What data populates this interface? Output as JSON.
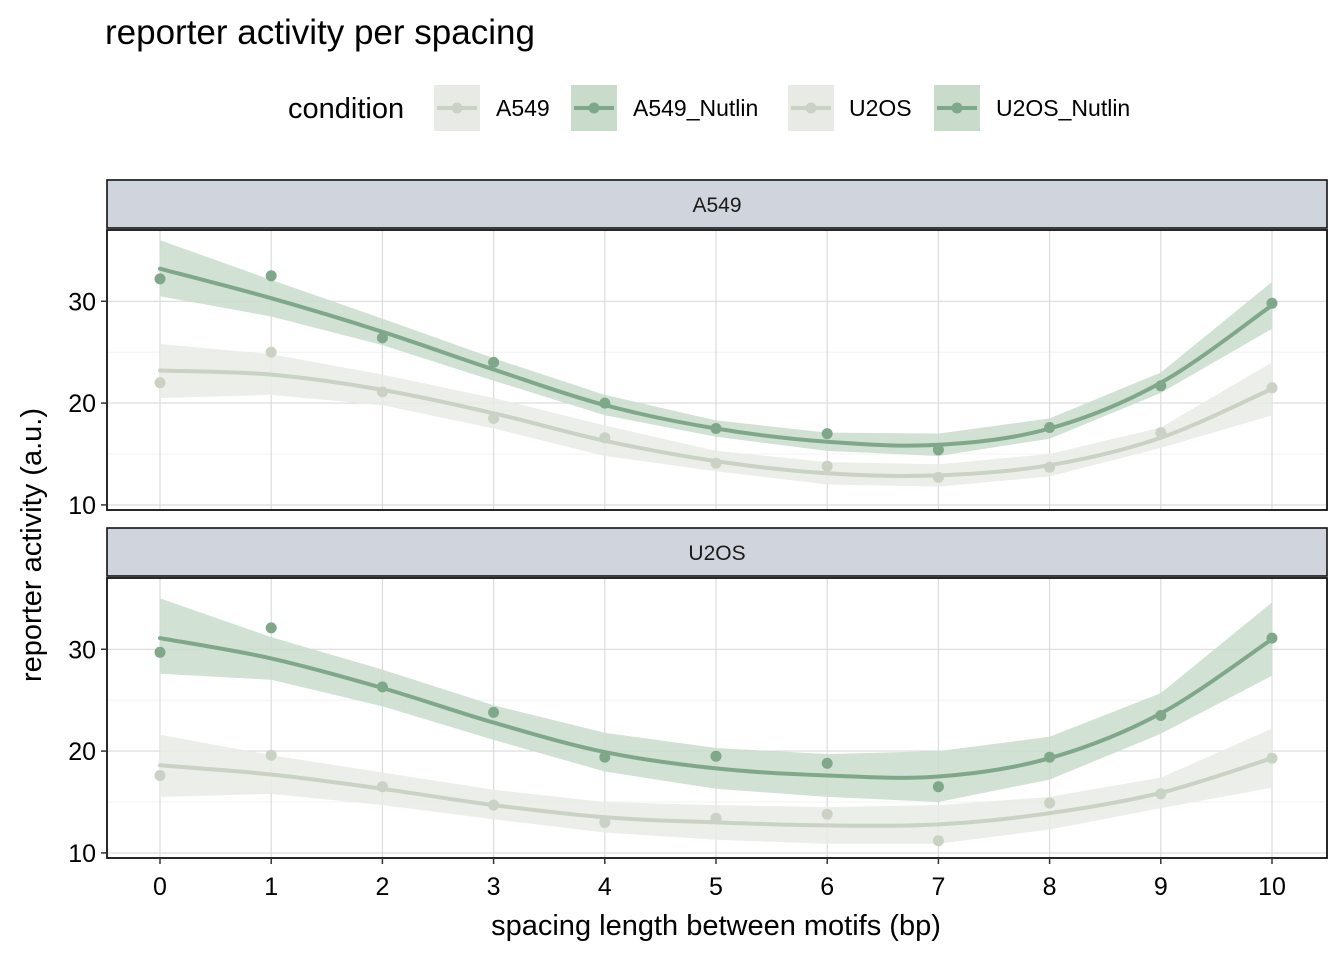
{
  "chart_data": {
    "type": "scatter",
    "title": "reporter activity per spacing",
    "xlabel": "spacing length between motifs (bp)",
    "ylabel": "reporter activity (a.u.)",
    "x_ticks": [
      0,
      1,
      2,
      3,
      4,
      5,
      6,
      7,
      8,
      9,
      10
    ],
    "xlim": [
      -0.5,
      10.5
    ],
    "y_ticks": [
      10,
      20,
      30
    ],
    "ylim": [
      9.5,
      37
    ],
    "legend": {
      "title": "condition",
      "position": "top",
      "entries": [
        "A549",
        "A549_Nutlin",
        "U2OS",
        "U2OS_Nutlin"
      ]
    },
    "colors": {
      "light": "#c9d2c5",
      "dark": "#7fa88a",
      "light_band": "#e8ebe5",
      "dark_band": "#c9dccc",
      "strip_bg": "#d0d5dd"
    },
    "panels": [
      {
        "label": "A549",
        "series": [
          {
            "name": "A549",
            "tone": "light",
            "points": [
              22.0,
              25.0,
              21.1,
              18.5,
              16.6,
              14.1,
              13.8,
              12.7,
              13.7,
              17.1,
              21.5
            ],
            "smooth": [
              23.2,
              22.8,
              21.3,
              19.0,
              16.3,
              14.3,
              13.1,
              12.9,
              13.9,
              16.6,
              21.4
            ],
            "ci_low": [
              20.5,
              20.8,
              19.8,
              17.5,
              14.8,
              13.3,
              12.0,
              11.8,
              12.8,
              15.6,
              18.8
            ],
            "ci_high": [
              25.8,
              24.8,
              22.8,
              20.5,
              17.8,
              15.3,
              14.2,
              14.0,
              15.0,
              17.6,
              24.0
            ]
          },
          {
            "name": "A549_Nutlin",
            "tone": "dark",
            "points": [
              32.2,
              32.5,
              26.4,
              24.0,
              20.0,
              17.5,
              17.0,
              15.4,
              17.6,
              21.7,
              29.8
            ],
            "smooth": [
              33.2,
              30.3,
              27.0,
              23.3,
              19.8,
              17.5,
              16.2,
              15.9,
              17.5,
              22.0,
              29.6
            ],
            "ci_low": [
              30.5,
              28.5,
              25.7,
              22.2,
              18.8,
              16.7,
              15.3,
              14.8,
              16.5,
              21.0,
              27.3
            ],
            "ci_high": [
              36.0,
              32.1,
              28.3,
              24.4,
              20.8,
              18.3,
              17.1,
              17.0,
              18.5,
              23.0,
              31.9
            ]
          }
        ]
      },
      {
        "label": "U2OS",
        "series": [
          {
            "name": "U2OS",
            "tone": "light",
            "points": [
              17.6,
              19.6,
              16.5,
              14.7,
              13.0,
              13.4,
              13.8,
              11.2,
              14.9,
              15.8,
              19.3
            ],
            "smooth": [
              18.6,
              17.7,
              16.3,
              14.7,
              13.5,
              13.0,
              12.7,
              12.8,
              13.9,
              15.9,
              19.3
            ],
            "ci_low": [
              15.5,
              15.8,
              14.7,
              13.3,
              12.0,
              11.3,
              10.9,
              10.9,
              12.3,
              14.4,
              16.4
            ],
            "ci_high": [
              21.6,
              19.6,
              17.9,
              16.2,
              15.0,
              14.7,
              14.5,
              14.7,
              15.5,
              17.4,
              22.2
            ]
          },
          {
            "name": "U2OS_Nutlin",
            "tone": "dark",
            "points": [
              29.7,
              32.1,
              26.3,
              23.8,
              19.4,
              19.5,
              18.8,
              16.5,
              19.4,
              23.5,
              31.1
            ],
            "smooth": [
              31.1,
              29.1,
              26.2,
              22.8,
              19.9,
              18.3,
              17.6,
              17.5,
              19.3,
              23.7,
              31.0
            ],
            "ci_low": [
              27.6,
              27.0,
              24.4,
              21.1,
              18.0,
              16.3,
              15.5,
              15.0,
              17.2,
              21.7,
              27.4
            ],
            "ci_high": [
              35.0,
              31.2,
              28.0,
              24.5,
              21.8,
              20.3,
              19.7,
              20.0,
              21.4,
              25.7,
              34.6
            ]
          }
        ]
      }
    ]
  }
}
